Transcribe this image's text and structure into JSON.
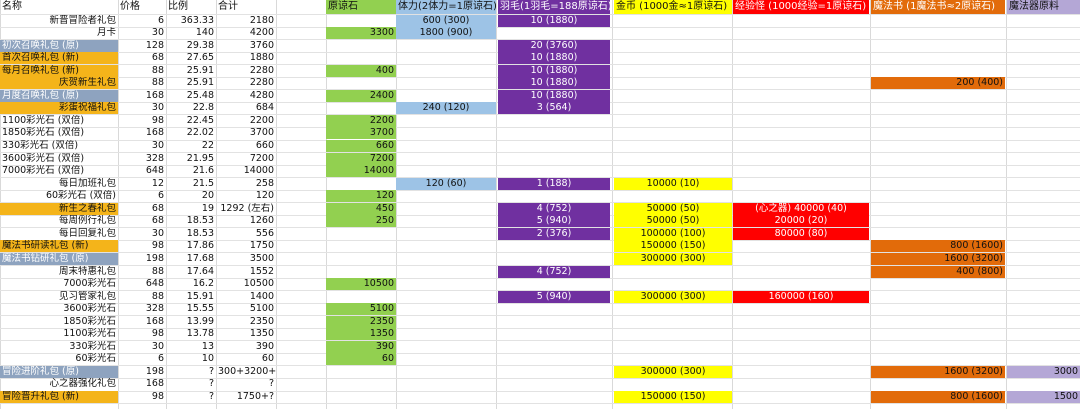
{
  "colors": {
    "orange": "#f4b41a",
    "gray_blue": "#8ea3bf",
    "green": "#92d050",
    "light_blue": "#9dc3e6",
    "purple": "#7030a0",
    "yellow": "#ffff00",
    "red": "#ff0000",
    "dark_orange": "#e26b0a",
    "lavender": "#b4a7d6"
  },
  "headers": [
    "名称",
    "价格",
    "比例",
    "合计",
    "原谅石",
    "体力(2体力=1原谅石)",
    "羽毛(1羽毛=188原谅石)",
    "金币 (1000金≈1原谅石)",
    "经验怪 (1000经验=1原谅石)",
    "魔法书 (1魔法书≈2原谅石)",
    "魔法器原料"
  ],
  "rows": [
    {
      "name": "新晋冒险者礼包",
      "name_align": "r",
      "name_bg": "",
      "price": "6",
      "ratio": "363.33",
      "total": "2180",
      "stone": "",
      "stamina": "600 (300)",
      "feather": "10 (1880)",
      "gold": "",
      "exp": "",
      "book": "",
      "material": ""
    },
    {
      "name": "月卡",
      "name_align": "r",
      "name_bg": "",
      "price": "30",
      "ratio": "140",
      "total": "4200",
      "stone": "3300",
      "stamina": "1800 (900)",
      "feather": "",
      "gold": "",
      "exp": "",
      "book": "",
      "material": ""
    },
    {
      "name": "初次召唤礼包 (原)",
      "name_align": "l",
      "name_bg": "gray_blue",
      "price": "128",
      "ratio": "29.38",
      "total": "3760",
      "stone": "",
      "stamina": "",
      "feather": "20 (3760)",
      "gold": "",
      "exp": "",
      "book": "",
      "material": ""
    },
    {
      "name": "首次召唤礼包 (新)",
      "name_align": "l",
      "name_bg": "orange",
      "price": "68",
      "ratio": "27.65",
      "total": "1880",
      "stone": "",
      "stamina": "",
      "feather": "10 (1880)",
      "gold": "",
      "exp": "",
      "book": "",
      "material": ""
    },
    {
      "name": "每月召唤礼包 (新)",
      "name_align": "l",
      "name_bg": "orange",
      "price": "88",
      "ratio": "25.91",
      "total": "2280",
      "stone": "400",
      "stamina": "",
      "feather": "10 (1880)",
      "gold": "",
      "exp": "",
      "book": "",
      "material": ""
    },
    {
      "name": "庆贺新生礼包",
      "name_align": "r",
      "name_bg": "orange",
      "price": "88",
      "ratio": "25.91",
      "total": "2280",
      "stone": "",
      "stamina": "",
      "feather": "10 (1880)",
      "gold": "",
      "exp": "",
      "book": "200 (400)",
      "material": ""
    },
    {
      "name": "月度召唤礼包 (原)",
      "name_align": "l",
      "name_bg": "gray_blue",
      "price": "168",
      "ratio": "25.48",
      "total": "4280",
      "stone": "2400",
      "stamina": "",
      "feather": "10 (1880)",
      "gold": "",
      "exp": "",
      "book": "",
      "material": ""
    },
    {
      "name": "彩蛋祝福礼包",
      "name_align": "r",
      "name_bg": "orange",
      "price": "30",
      "ratio": "22.8",
      "total": "684",
      "stone": "",
      "stamina": "240 (120)",
      "feather": "3 (564)",
      "gold": "",
      "exp": "",
      "book": "",
      "material": ""
    },
    {
      "name": "1100彩光石 (双倍)",
      "name_align": "l",
      "name_bg": "",
      "price": "98",
      "ratio": "22.45",
      "total": "2200",
      "stone": "2200",
      "stamina": "",
      "feather": "",
      "gold": "",
      "exp": "",
      "book": "",
      "material": ""
    },
    {
      "name": "1850彩光石 (双倍)",
      "name_align": "l",
      "name_bg": "",
      "price": "168",
      "ratio": "22.02",
      "total": "3700",
      "stone": "3700",
      "stamina": "",
      "feather": "",
      "gold": "",
      "exp": "",
      "book": "",
      "material": ""
    },
    {
      "name": "330彩光石 (双倍)",
      "name_align": "l",
      "name_bg": "",
      "price": "30",
      "ratio": "22",
      "total": "660",
      "stone": "660",
      "stamina": "",
      "feather": "",
      "gold": "",
      "exp": "",
      "book": "",
      "material": ""
    },
    {
      "name": "3600彩光石 (双倍)",
      "name_align": "l",
      "name_bg": "",
      "price": "328",
      "ratio": "21.95",
      "total": "7200",
      "stone": "7200",
      "stamina": "",
      "feather": "",
      "gold": "",
      "exp": "",
      "book": "",
      "material": ""
    },
    {
      "name": "7000彩光石 (双倍)",
      "name_align": "l",
      "name_bg": "",
      "price": "648",
      "ratio": "21.6",
      "total": "14000",
      "stone": "14000",
      "stamina": "",
      "feather": "",
      "gold": "",
      "exp": "",
      "book": "",
      "material": ""
    },
    {
      "name": "每日加班礼包",
      "name_align": "r",
      "name_bg": "",
      "price": "12",
      "ratio": "21.5",
      "total": "258",
      "stone": "",
      "stamina": "120 (60)",
      "feather": "1 (188)",
      "gold": "10000 (10)",
      "exp": "",
      "book": "",
      "material": ""
    },
    {
      "name": "60彩光石 (双倍)",
      "name_align": "r",
      "name_bg": "",
      "price": "6",
      "ratio": "20",
      "total": "120",
      "stone": "120",
      "stamina": "",
      "feather": "",
      "gold": "",
      "exp": "",
      "book": "",
      "material": ""
    },
    {
      "name": "新生之春礼包",
      "name_align": "r",
      "name_bg": "orange",
      "price": "68",
      "ratio": "19",
      "total": "1292 (左右)",
      "stone": "450",
      "stamina": "",
      "feather": "4 (752)",
      "gold": "50000 (50)",
      "exp": "(心之器) 40000 (40)",
      "book": "",
      "material": ""
    },
    {
      "name": "每周例行礼包",
      "name_align": "r",
      "name_bg": "",
      "price": "68",
      "ratio": "18.53",
      "total": "1260",
      "stone": "250",
      "stamina": "",
      "feather": "5 (940)",
      "gold": "50000 (50)",
      "exp": "20000 (20)",
      "book": "",
      "material": ""
    },
    {
      "name": "每日回复礼包",
      "name_align": "r",
      "name_bg": "",
      "price": "30",
      "ratio": "18.53",
      "total": "556",
      "stone": "",
      "stamina": "",
      "feather": "2 (376)",
      "gold": "100000 (100)",
      "exp": "80000 (80)",
      "book": "",
      "material": ""
    },
    {
      "name": "魔法书研读礼包 (新)",
      "name_align": "l",
      "name_bg": "orange",
      "price": "98",
      "ratio": "17.86",
      "total": "1750",
      "stone": "",
      "stamina": "",
      "feather": "",
      "gold": "150000 (150)",
      "exp": "",
      "book": "800 (1600)",
      "material": ""
    },
    {
      "name": "魔法书钻研礼包 (原)",
      "name_align": "l",
      "name_bg": "gray_blue",
      "price": "198",
      "ratio": "17.68",
      "total": "3500",
      "stone": "",
      "stamina": "",
      "feather": "",
      "gold": "300000 (300)",
      "exp": "",
      "book": "1600 (3200)",
      "material": ""
    },
    {
      "name": "周末特惠礼包",
      "name_align": "r",
      "name_bg": "",
      "price": "88",
      "ratio": "17.64",
      "total": "1552",
      "stone": "",
      "stamina": "",
      "feather": "4 (752)",
      "gold": "",
      "exp": "",
      "book": "400 (800)",
      "material": ""
    },
    {
      "name": "7000彩光石",
      "name_align": "r",
      "name_bg": "",
      "price": "648",
      "ratio": "16.2",
      "total": "10500",
      "stone": "10500",
      "stamina": "",
      "feather": "",
      "gold": "",
      "exp": "",
      "book": "",
      "material": ""
    },
    {
      "name": "见习管家礼包",
      "name_align": "r",
      "name_bg": "",
      "price": "88",
      "ratio": "15.91",
      "total": "1400",
      "stone": "",
      "stamina": "",
      "feather": "5 (940)",
      "gold": "300000 (300)",
      "exp": "160000 (160)",
      "book": "",
      "material": ""
    },
    {
      "name": "3600彩光石",
      "name_align": "r",
      "name_bg": "",
      "price": "328",
      "ratio": "15.55",
      "total": "5100",
      "stone": "5100",
      "stamina": "",
      "feather": "",
      "gold": "",
      "exp": "",
      "book": "",
      "material": ""
    },
    {
      "name": "1850彩光石",
      "name_align": "r",
      "name_bg": "",
      "price": "168",
      "ratio": "13.99",
      "total": "2350",
      "stone": "2350",
      "stamina": "",
      "feather": "",
      "gold": "",
      "exp": "",
      "book": "",
      "material": ""
    },
    {
      "name": "1100彩光石",
      "name_align": "r",
      "name_bg": "",
      "price": "98",
      "ratio": "13.78",
      "total": "1350",
      "stone": "1350",
      "stamina": "",
      "feather": "",
      "gold": "",
      "exp": "",
      "book": "",
      "material": ""
    },
    {
      "name": "330彩光石",
      "name_align": "r",
      "name_bg": "",
      "price": "30",
      "ratio": "13",
      "total": "390",
      "stone": "390",
      "stamina": "",
      "feather": "",
      "gold": "",
      "exp": "",
      "book": "",
      "material": ""
    },
    {
      "name": "60彩光石",
      "name_align": "r",
      "name_bg": "",
      "price": "6",
      "ratio": "10",
      "total": "60",
      "stone": "60",
      "stamina": "",
      "feather": "",
      "gold": "",
      "exp": "",
      "book": "",
      "material": ""
    },
    {
      "name": "冒险进阶礼包 (原)",
      "name_align": "l",
      "name_bg": "gray_blue",
      "price": "198",
      "ratio": "?",
      "total": "300+3200+?",
      "stone": "",
      "stamina": "",
      "feather": "",
      "gold": "300000 (300)",
      "exp": "",
      "book": "1600 (3200)",
      "material": "3000"
    },
    {
      "name": "心之器强化礼包",
      "name_align": "r",
      "name_bg": "",
      "price": "168",
      "ratio": "?",
      "total": "?",
      "stone": "",
      "stamina": "",
      "feather": "",
      "gold": "",
      "exp": "",
      "book": "",
      "material": ""
    },
    {
      "name": "冒险晋升礼包 (新)",
      "name_align": "l",
      "name_bg": "orange",
      "price": "98",
      "ratio": "?",
      "total": "1750+?",
      "stone": "",
      "stamina": "",
      "feather": "",
      "gold": "150000 (150)",
      "exp": "",
      "book": "800 (1600)",
      "material": "1500"
    }
  ]
}
